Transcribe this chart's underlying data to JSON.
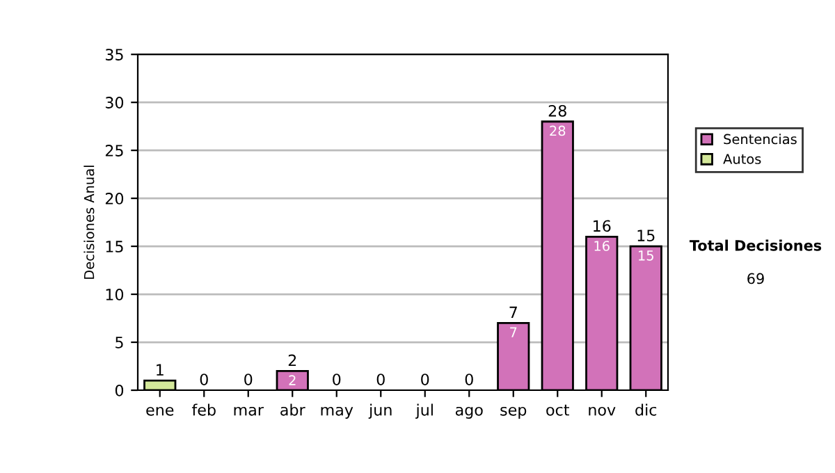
{
  "chart_data": {
    "type": "bar",
    "stacked": true,
    "ylabel": "Decisiones Anual",
    "categories": [
      "ene",
      "feb",
      "mar",
      "abr",
      "may",
      "jun",
      "jul",
      "ago",
      "sep",
      "oct",
      "nov",
      "dic"
    ],
    "series": [
      {
        "name": "Sentencias",
        "color": "#d272b9",
        "values": [
          0,
          0,
          0,
          2,
          0,
          0,
          0,
          0,
          7,
          28,
          16,
          15
        ],
        "value_labels": [
          null,
          null,
          null,
          "2",
          null,
          null,
          null,
          null,
          "7",
          "28",
          "16",
          "15"
        ]
      },
      {
        "name": "Autos",
        "color": "#d4e89a",
        "values": [
          1,
          0,
          0,
          0,
          0,
          0,
          0,
          0,
          0,
          0,
          0,
          0
        ]
      }
    ],
    "totals": [
      "1",
      "0",
      "0",
      "2",
      "0",
      "0",
      "0",
      "0",
      "7",
      "28",
      "16",
      "15"
    ],
    "ylim": [
      0,
      35
    ],
    "yticks": [
      0,
      5,
      10,
      15,
      20,
      25,
      30,
      35
    ],
    "grid": "y",
    "legend": "right",
    "annotations": [
      "Total Decisiones",
      "69"
    ]
  }
}
